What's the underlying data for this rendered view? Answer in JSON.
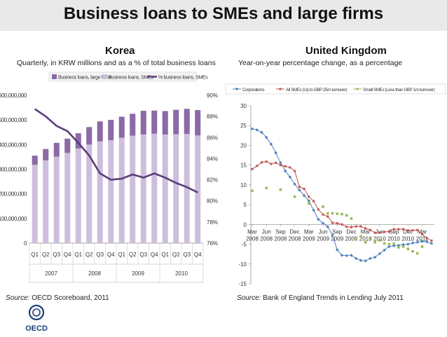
{
  "title": "Business loans to SMEs and large firms",
  "korea": {
    "panel_title": "Korea",
    "subtitle": "Quarterly, in KRW millions and as a % of total business loans",
    "source_label": "Source:",
    "source_text": "OECD Scoreboard, 2011"
  },
  "uk": {
    "panel_title": "United Kingdom",
    "subtitle": "Year-on-year percentage change, as a percentage",
    "source_label": "Source:",
    "source_text": "Bank of England Trends in Lending July 2011"
  },
  "logo": {
    "text": "OECD",
    "icon": "oecd-logo"
  },
  "colors": {
    "sme_bar": "#cdbfdc",
    "large_bar": "#8b6aa5",
    "share_line": "#5b3d7a",
    "corporations": "#4f81bd",
    "all_smes": "#c0504d",
    "small_smes": "#9bbb59"
  },
  "chart_data": [
    {
      "type": "bar",
      "stacked": true,
      "categories": [
        "Q1",
        "Q2",
        "Q3",
        "Q4",
        "Q1",
        "Q2",
        "Q3",
        "Q4",
        "Q1",
        "Q2",
        "Q3",
        "Q4",
        "Q1",
        "Q2",
        "Q3",
        "Q4"
      ],
      "category_groups": [
        {
          "label": "2007",
          "span": 4
        },
        {
          "label": "2008",
          "span": 4
        },
        {
          "label": "2009",
          "span": 4
        },
        {
          "label": "2010",
          "span": 4
        }
      ],
      "series": [
        {
          "name": "Business loans, SMEs",
          "axis": "left",
          "values": [
            318000000,
            336000000,
            351000000,
            366000000,
            384000000,
            400000000,
            413000000,
            418000000,
            428000000,
            436000000,
            441000000,
            444000000,
            441000000,
            442000000,
            443000000,
            437000000
          ]
        },
        {
          "name": "Business loans, large firms",
          "axis": "left",
          "values": [
            37000000,
            46000000,
            56000000,
            58000000,
            62000000,
            71000000,
            81000000,
            82000000,
            85000000,
            89000000,
            96000000,
            94000000,
            95000000,
            99000000,
            102000000,
            103000000
          ]
        },
        {
          "name": "% business loans, SMEs",
          "type": "line",
          "axis": "right",
          "values": [
            88.7,
            88.0,
            87.1,
            86.6,
            85.5,
            84.3,
            82.6,
            82.0,
            82.1,
            82.5,
            82.2,
            82.6,
            82.2,
            81.7,
            81.3,
            80.8
          ]
        }
      ],
      "y_left": {
        "ticks": [
          "0",
          "100,000,000",
          "200,000,000",
          "300,000,000",
          "400,000,000",
          "500,000,000",
          "600,000,000"
        ],
        "ylim": [
          0,
          600000000
        ]
      },
      "y_right": {
        "ticks": [
          "76%",
          "78%",
          "80%",
          "82%",
          "84%",
          "86%",
          "88%",
          "90%"
        ],
        "ylim": [
          76,
          90
        ]
      },
      "legend_position": "top"
    },
    {
      "type": "line",
      "x_ticks": [
        {
          "label": "Mar",
          "year": "2008",
          "index": 0
        },
        {
          "label": "Jun",
          "year": "2008",
          "index": 3
        },
        {
          "label": "Sep",
          "year": "2008",
          "index": 6
        },
        {
          "label": "Dec",
          "year": "2008",
          "index": 9
        },
        {
          "label": "Mar",
          "year": "2009",
          "index": 12
        },
        {
          "label": "Jun",
          "year": "2009",
          "index": 15
        },
        {
          "label": "Sep",
          "year": "2009",
          "index": 18
        },
        {
          "label": "Dec",
          "year": "2009",
          "index": 21
        },
        {
          "label": "Mar",
          "year": "2010",
          "index": 24
        },
        {
          "label": "Jun",
          "year": "2010",
          "index": 27
        },
        {
          "label": "Sep",
          "year": "2010",
          "index": 30
        },
        {
          "label": "Dec",
          "year": "2010",
          "index": 33
        },
        {
          "label": "Mar",
          "year": "2011",
          "index": 36
        }
      ],
      "series": [
        {
          "name": "Corporations",
          "marker": "diamond",
          "x": [
            0,
            1,
            2,
            3,
            4,
            5,
            6,
            7,
            8,
            9,
            10,
            11,
            12,
            13,
            14,
            15,
            16,
            17,
            18,
            19,
            20,
            21,
            22,
            23,
            24,
            25,
            26,
            27,
            28,
            29,
            30,
            31,
            32,
            33,
            34,
            35,
            36,
            37,
            38
          ],
          "values": [
            24.2,
            23.9,
            23.3,
            22.0,
            20.3,
            18.1,
            15.6,
            13.5,
            12.0,
            10.2,
            8.7,
            7.3,
            6.0,
            3.6,
            1.3,
            0.3,
            -0.6,
            -2.7,
            -6.4,
            -7.8,
            -7.9,
            -7.8,
            -8.6,
            -9.1,
            -9.2,
            -8.6,
            -8.3,
            -7.4,
            -6.5,
            -5.6,
            -5.4,
            -5.3,
            -5.1,
            -5.0,
            -4.7,
            -4.5,
            -4.3,
            -4.4,
            -4.8
          ]
        },
        {
          "name": "All SMEs (Up to GBP 25m turnover)",
          "marker": "square",
          "x": [
            0,
            1,
            2,
            3,
            4,
            5,
            6,
            7,
            8,
            9,
            10,
            11,
            12,
            13,
            14,
            15,
            16,
            17,
            18,
            19,
            20,
            21,
            22,
            23,
            24,
            25,
            26,
            27,
            28,
            29,
            30,
            31,
            32,
            33,
            34,
            35,
            36,
            37,
            38
          ],
          "values": [
            14.0,
            14.8,
            15.7,
            15.9,
            15.3,
            15.6,
            15.0,
            14.7,
            14.4,
            13.5,
            9.5,
            9.0,
            7.0,
            5.9,
            3.8,
            2.5,
            2.0,
            0.4,
            0.3,
            0.0,
            -0.6,
            -0.7,
            -0.5,
            -0.5,
            -1.0,
            -1.4,
            -2.1,
            -2.1,
            -1.9,
            -1.8,
            -1.2,
            -1.2,
            -1.2,
            -1.5,
            -1.5,
            -1.4,
            -2.5,
            -3.5,
            -4.1
          ]
        },
        {
          "name": "Small SMEs (Less than GBP 1m turnover)",
          "marker": "square",
          "x": [
            0,
            3,
            6,
            9,
            12,
            15,
            16,
            17,
            18,
            19,
            20,
            21,
            22,
            23,
            24,
            25,
            26,
            27,
            28,
            29,
            30,
            31,
            32,
            33,
            34,
            35,
            36
          ],
          "values": [
            8.5,
            9.2,
            8.8,
            7.0,
            5.3,
            4.5,
            2.8,
            2.8,
            2.7,
            2.6,
            2.3,
            1.5,
            -3.8,
            -3.0,
            -4.5,
            -3.6,
            -4.5,
            -4.0,
            -4.8,
            -5.0,
            -4.9,
            -5.8,
            -5.6,
            -6.2,
            -6.8,
            -7.3,
            -5.6
          ]
        }
      ],
      "y_ticks": [
        "-15",
        "-10",
        "-5",
        "0",
        "5",
        "10",
        "15",
        "20",
        "25",
        "30"
      ],
      "ylim": [
        -15,
        30
      ],
      "legend_position": "top"
    }
  ]
}
